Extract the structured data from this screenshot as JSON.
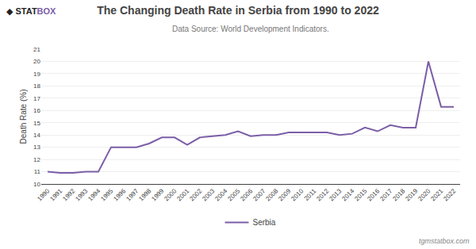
{
  "chart_data": {
    "type": "line",
    "title": "The Changing Death Rate in Serbia from 1990 to 2022",
    "subtitle": "Data Source: World Development Indicators.",
    "ylabel": "Death Rate (%)",
    "x": [
      1990,
      1991,
      1992,
      1993,
      1994,
      1995,
      1996,
      1997,
      1998,
      1999,
      2000,
      2001,
      2002,
      2003,
      2004,
      2005,
      2006,
      2007,
      2008,
      2009,
      2010,
      2011,
      2012,
      2013,
      2014,
      2015,
      2016,
      2017,
      2018,
      2019,
      2020,
      2021,
      2022
    ],
    "series": [
      {
        "name": "Serbia",
        "color": "#7B5EA7",
        "values": [
          11.0,
          10.9,
          10.9,
          11.0,
          11.0,
          13.0,
          13.0,
          13.0,
          13.3,
          13.8,
          13.8,
          13.2,
          13.8,
          13.9,
          14.0,
          14.3,
          13.9,
          14.0,
          14.0,
          14.2,
          14.2,
          14.2,
          14.2,
          14.0,
          14.1,
          14.6,
          14.3,
          14.8,
          14.6,
          14.6,
          20.0,
          16.3,
          16.3
        ]
      }
    ],
    "xlim": [
      1989.5,
      2022.5
    ],
    "xticks": [
      1990,
      1991,
      1992,
      1993,
      1994,
      1995,
      1996,
      1997,
      1998,
      1999,
      2000,
      2001,
      2002,
      2003,
      2004,
      2005,
      2006,
      2007,
      2008,
      2009,
      2010,
      2011,
      2012,
      2013,
      2014,
      2015,
      2016,
      2017,
      2018,
      2019,
      2020,
      2021,
      2022
    ],
    "ylim": [
      10,
      21
    ],
    "yticks": [
      10,
      11,
      12,
      13,
      14,
      15,
      16,
      17,
      18,
      19,
      20,
      21
    ],
    "grid": "y",
    "legend": "bottom",
    "annotations": [
      {
        "text": "◆ STAT",
        "color": "#222222"
      },
      {
        "text": "BOX",
        "color": "#7B5EA7"
      },
      {
        "text": "tgmstatbox.com"
      }
    ]
  }
}
